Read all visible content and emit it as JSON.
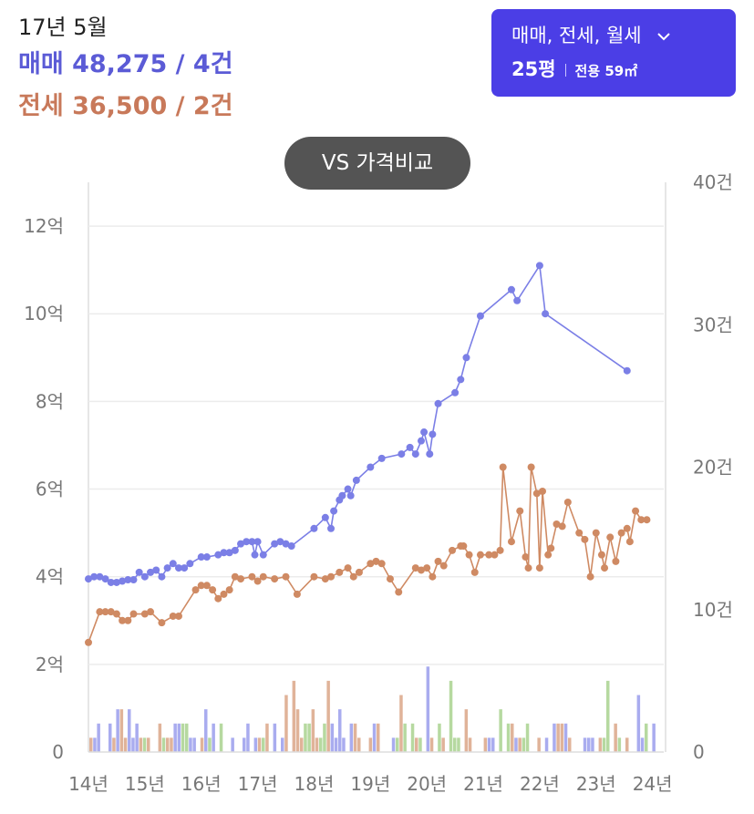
{
  "summary": {
    "period": "17년 5월",
    "sale": "매매 48,275 / 4건",
    "jeonse": "전세 36,500 / 2건"
  },
  "filter": {
    "type_label": "매매, 전세, 월세",
    "chevron_icon": "chevron-down-icon",
    "size_label": "25평",
    "area_label": "전용 59㎡"
  },
  "compare_button": "VS 가격비교",
  "colors": {
    "sale": "#7b7fe6",
    "jeonse": "#cf8a63",
    "monthly": "#8fc46d",
    "accent": "#4b3ee6"
  },
  "chart_data": {
    "type": "line",
    "x_range": [
      2014.0,
      2024.2
    ],
    "y_left": {
      "ticks": [
        "0",
        "2억",
        "4억",
        "6억",
        "8억",
        "10억",
        "12억"
      ],
      "tick_values": [
        0,
        2,
        4,
        6,
        8,
        10,
        12
      ],
      "range": [
        0,
        13
      ]
    },
    "y_right": {
      "ticks": [
        "0",
        "10건",
        "20건",
        "30건",
        "40건"
      ],
      "tick_values": [
        0,
        10,
        20,
        30,
        40
      ],
      "range": [
        0,
        40
      ]
    },
    "x_ticks": [
      "14년",
      "15년",
      "16년",
      "17년",
      "18년",
      "19년",
      "20년",
      "21년",
      "22년",
      "23년",
      "24년"
    ],
    "x_tick_values": [
      2014,
      2015,
      2016,
      2017,
      2018,
      2019,
      2020,
      2021,
      2022,
      2023,
      2024
    ],
    "grid": true,
    "series": [
      {
        "name": "매매",
        "color": "#7b7fe6",
        "points": [
          [
            2014.0,
            3.95
          ],
          [
            2014.1,
            4.0
          ],
          [
            2014.2,
            4.0
          ],
          [
            2014.3,
            3.95
          ],
          [
            2014.4,
            3.87
          ],
          [
            2014.5,
            3.87
          ],
          [
            2014.6,
            3.9
          ],
          [
            2014.7,
            3.93
          ],
          [
            2014.8,
            3.93
          ],
          [
            2014.9,
            4.1
          ],
          [
            2015.0,
            4.0
          ],
          [
            2015.1,
            4.1
          ],
          [
            2015.2,
            4.15
          ],
          [
            2015.3,
            4.0
          ],
          [
            2015.4,
            4.2
          ],
          [
            2015.5,
            4.3
          ],
          [
            2015.6,
            4.2
          ],
          [
            2015.7,
            4.2
          ],
          [
            2015.8,
            4.3
          ],
          [
            2016.0,
            4.45
          ],
          [
            2016.1,
            4.45
          ],
          [
            2016.3,
            4.5
          ],
          [
            2016.4,
            4.55
          ],
          [
            2016.5,
            4.55
          ],
          [
            2016.6,
            4.6
          ],
          [
            2016.7,
            4.75
          ],
          [
            2016.8,
            4.8
          ],
          [
            2016.9,
            4.8
          ],
          [
            2016.95,
            4.5
          ],
          [
            2017.0,
            4.8
          ],
          [
            2017.1,
            4.5
          ],
          [
            2017.3,
            4.75
          ],
          [
            2017.4,
            4.8
          ],
          [
            2017.5,
            4.75
          ],
          [
            2017.6,
            4.7
          ],
          [
            2018.0,
            5.1
          ],
          [
            2018.2,
            5.35
          ],
          [
            2018.3,
            5.1
          ],
          [
            2018.35,
            5.5
          ],
          [
            2018.45,
            5.75
          ],
          [
            2018.5,
            5.85
          ],
          [
            2018.6,
            6.0
          ],
          [
            2018.65,
            5.85
          ],
          [
            2018.75,
            6.2
          ],
          [
            2019.0,
            6.5
          ],
          [
            2019.2,
            6.7
          ],
          [
            2019.55,
            6.8
          ],
          [
            2019.7,
            6.95
          ],
          [
            2019.8,
            6.8
          ],
          [
            2019.9,
            7.1
          ],
          [
            2019.95,
            7.3
          ],
          [
            2020.05,
            6.8
          ],
          [
            2020.1,
            7.25
          ],
          [
            2020.2,
            7.95
          ],
          [
            2020.5,
            8.2
          ],
          [
            2020.6,
            8.5
          ],
          [
            2020.7,
            9.0
          ],
          [
            2020.95,
            9.95
          ],
          [
            2021.5,
            10.55
          ],
          [
            2021.6,
            10.3
          ],
          [
            2022.0,
            11.1
          ],
          [
            2022.1,
            10.0
          ],
          [
            2023.55,
            8.7
          ]
        ]
      },
      {
        "name": "전세",
        "color": "#cf8a63",
        "points": [
          [
            2014.0,
            2.5
          ],
          [
            2014.2,
            3.2
          ],
          [
            2014.3,
            3.2
          ],
          [
            2014.4,
            3.2
          ],
          [
            2014.5,
            3.15
          ],
          [
            2014.6,
            3.0
          ],
          [
            2014.7,
            3.0
          ],
          [
            2014.8,
            3.15
          ],
          [
            2015.0,
            3.15
          ],
          [
            2015.1,
            3.2
          ],
          [
            2015.3,
            2.95
          ],
          [
            2015.5,
            3.1
          ],
          [
            2015.6,
            3.1
          ],
          [
            2015.9,
            3.7
          ],
          [
            2016.0,
            3.8
          ],
          [
            2016.1,
            3.8
          ],
          [
            2016.2,
            3.7
          ],
          [
            2016.3,
            3.5
          ],
          [
            2016.4,
            3.6
          ],
          [
            2016.5,
            3.7
          ],
          [
            2016.6,
            4.0
          ],
          [
            2016.7,
            3.95
          ],
          [
            2016.9,
            4.0
          ],
          [
            2017.0,
            3.9
          ],
          [
            2017.1,
            4.0
          ],
          [
            2017.3,
            3.95
          ],
          [
            2017.5,
            4.0
          ],
          [
            2017.7,
            3.6
          ],
          [
            2018.0,
            4.0
          ],
          [
            2018.2,
            3.95
          ],
          [
            2018.3,
            4.0
          ],
          [
            2018.45,
            4.1
          ],
          [
            2018.6,
            4.2
          ],
          [
            2018.7,
            4.0
          ],
          [
            2018.8,
            4.1
          ],
          [
            2019.0,
            4.3
          ],
          [
            2019.1,
            4.35
          ],
          [
            2019.2,
            4.3
          ],
          [
            2019.35,
            3.95
          ],
          [
            2019.5,
            3.65
          ],
          [
            2019.8,
            4.2
          ],
          [
            2019.9,
            4.15
          ],
          [
            2020.0,
            4.2
          ],
          [
            2020.1,
            4.0
          ],
          [
            2020.2,
            4.35
          ],
          [
            2020.3,
            4.25
          ],
          [
            2020.45,
            4.6
          ],
          [
            2020.6,
            4.7
          ],
          [
            2020.65,
            4.7
          ],
          [
            2020.75,
            4.5
          ],
          [
            2020.85,
            4.1
          ],
          [
            2020.95,
            4.5
          ],
          [
            2021.1,
            4.5
          ],
          [
            2021.2,
            4.5
          ],
          [
            2021.3,
            4.6
          ],
          [
            2021.35,
            6.5
          ],
          [
            2021.5,
            4.8
          ],
          [
            2021.65,
            5.5
          ],
          [
            2021.75,
            4.45
          ],
          [
            2021.8,
            4.2
          ],
          [
            2021.85,
            6.5
          ],
          [
            2021.95,
            5.9
          ],
          [
            2022.0,
            4.2
          ],
          [
            2022.05,
            5.95
          ],
          [
            2022.15,
            4.5
          ],
          [
            2022.2,
            4.65
          ],
          [
            2022.3,
            5.2
          ],
          [
            2022.4,
            5.15
          ],
          [
            2022.5,
            5.7
          ],
          [
            2022.7,
            5.0
          ],
          [
            2022.8,
            4.85
          ],
          [
            2022.9,
            4.0
          ],
          [
            2023.0,
            5.0
          ],
          [
            2023.1,
            4.5
          ],
          [
            2023.15,
            4.2
          ],
          [
            2023.25,
            4.9
          ],
          [
            2023.35,
            4.35
          ],
          [
            2023.45,
            5.0
          ],
          [
            2023.55,
            5.1
          ],
          [
            2023.6,
            4.8
          ],
          [
            2023.7,
            5.5
          ],
          [
            2023.8,
            5.3
          ],
          [
            2023.9,
            5.3
          ]
        ]
      },
      {
        "name": "월세",
        "color": "#8fc46d",
        "points": []
      }
    ]
  }
}
